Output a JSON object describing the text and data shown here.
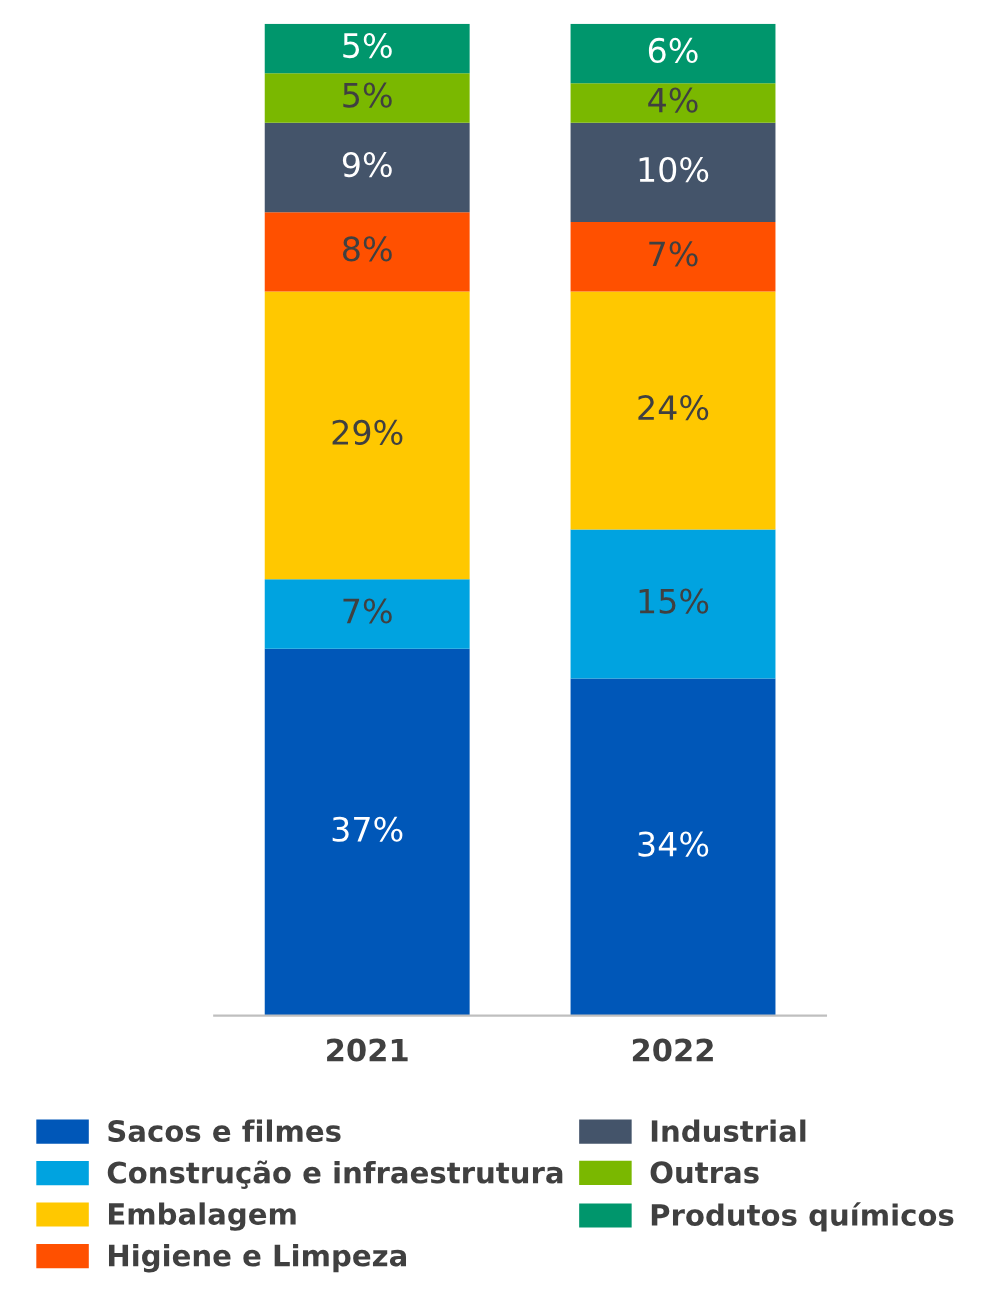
{
  "chart_data": {
    "type": "bar",
    "stacked": true,
    "categories": [
      "2021",
      "2022"
    ],
    "tick_labels": "x",
    "legend": "bottom",
    "grid": false,
    "series": [
      {
        "name": "Sacos e filmes",
        "color": "#0057b8",
        "values": [
          37,
          34
        ],
        "value_labels": [
          "37%",
          "34%"
        ]
      },
      {
        "name": "Construção e infraestrutura",
        "color": "#00a3e0",
        "values": [
          7,
          15
        ],
        "value_labels": [
          "7%",
          "15%"
        ]
      },
      {
        "name": "Embalagem",
        "color": "#ffc800",
        "values": [
          29,
          24
        ],
        "value_labels": [
          "29%",
          "24%"
        ]
      },
      {
        "name": "Higiene e Limpeza",
        "color": "#ff5000",
        "values": [
          8,
          7
        ],
        "value_labels": [
          "8%",
          "7%"
        ]
      },
      {
        "name": "Industrial",
        "color": "#44546a",
        "values": [
          9,
          10
        ],
        "value_labels": [
          "9%",
          "10%"
        ]
      },
      {
        "name": "Outras",
        "color": "#7ab800",
        "values": [
          5,
          4
        ],
        "value_labels": [
          "5%",
          "4%"
        ]
      },
      {
        "name": "Produtos químicos",
        "color": "#00966c",
        "values": [
          5,
          6
        ],
        "value_labels": [
          "5%",
          "6%"
        ]
      }
    ]
  }
}
